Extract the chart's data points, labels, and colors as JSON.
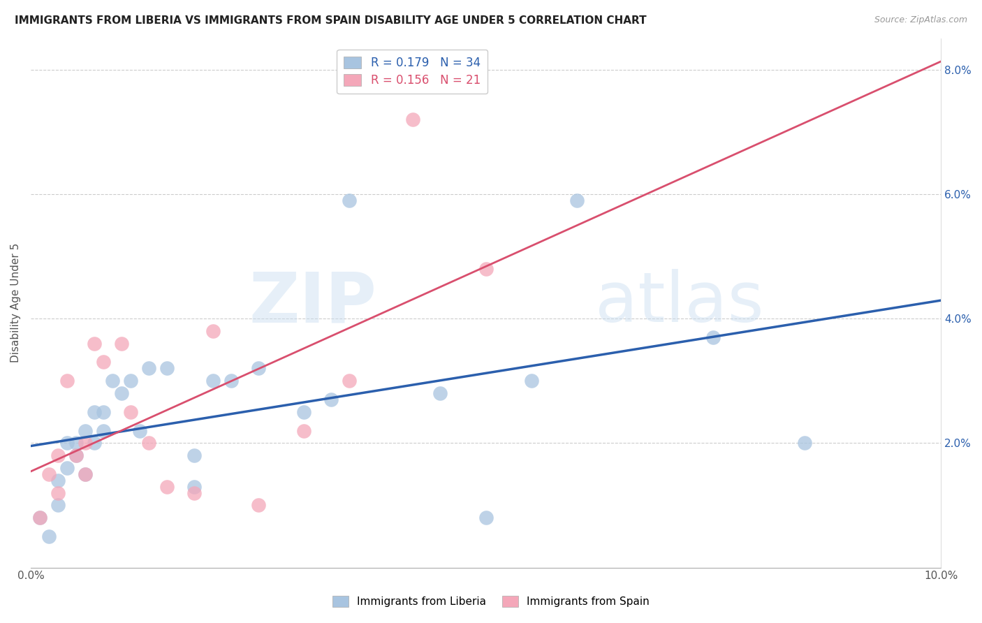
{
  "title": "IMMIGRANTS FROM LIBERIA VS IMMIGRANTS FROM SPAIN DISABILITY AGE UNDER 5 CORRELATION CHART",
  "source": "Source: ZipAtlas.com",
  "ylabel": "Disability Age Under 5",
  "xlim": [
    0.0,
    0.1
  ],
  "ylim": [
    0.0,
    0.085
  ],
  "liberia_R": 0.179,
  "liberia_N": 34,
  "spain_R": 0.156,
  "spain_N": 21,
  "liberia_color": "#a8c4e0",
  "spain_color": "#f4a7b9",
  "liberia_line_color": "#2b5fad",
  "spain_line_color": "#d94f6e",
  "watermark_zip": "ZIP",
  "watermark_atlas": "atlas",
  "liberia_points_x": [
    0.001,
    0.002,
    0.003,
    0.003,
    0.004,
    0.004,
    0.005,
    0.005,
    0.006,
    0.006,
    0.007,
    0.007,
    0.008,
    0.008,
    0.009,
    0.01,
    0.011,
    0.012,
    0.013,
    0.015,
    0.018,
    0.018,
    0.02,
    0.022,
    0.025,
    0.03,
    0.033,
    0.035,
    0.045,
    0.05,
    0.055,
    0.06,
    0.075,
    0.085
  ],
  "liberia_points_y": [
    0.008,
    0.005,
    0.014,
    0.01,
    0.02,
    0.016,
    0.02,
    0.018,
    0.022,
    0.015,
    0.025,
    0.02,
    0.025,
    0.022,
    0.03,
    0.028,
    0.03,
    0.022,
    0.032,
    0.032,
    0.013,
    0.018,
    0.03,
    0.03,
    0.032,
    0.025,
    0.027,
    0.059,
    0.028,
    0.008,
    0.03,
    0.059,
    0.037,
    0.02
  ],
  "spain_points_x": [
    0.001,
    0.002,
    0.003,
    0.003,
    0.004,
    0.005,
    0.006,
    0.006,
    0.007,
    0.008,
    0.01,
    0.011,
    0.013,
    0.015,
    0.018,
    0.02,
    0.025,
    0.03,
    0.035,
    0.042,
    0.05
  ],
  "spain_points_y": [
    0.008,
    0.015,
    0.012,
    0.018,
    0.03,
    0.018,
    0.015,
    0.02,
    0.036,
    0.033,
    0.036,
    0.025,
    0.02,
    0.013,
    0.012,
    0.038,
    0.01,
    0.022,
    0.03,
    0.072,
    0.048
  ]
}
